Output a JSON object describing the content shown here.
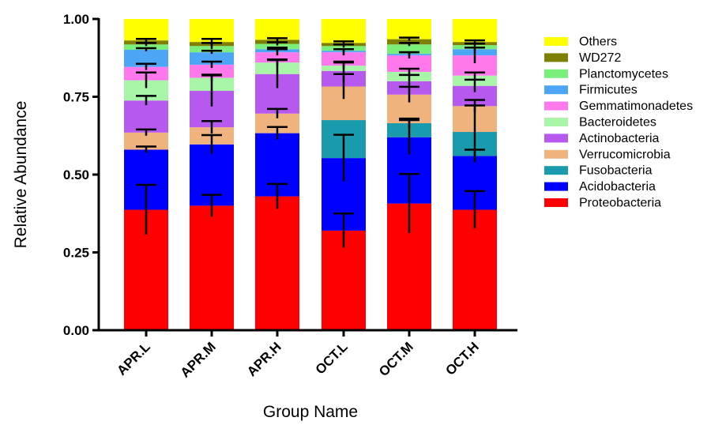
{
  "chart_data": {
    "type": "bar",
    "stacked": true,
    "xlabel": "Group Name",
    "ylabel": "Relative Abundance",
    "ylim": [
      0,
      1
    ],
    "yticks": [
      "0.00",
      "0.25",
      "0.50",
      "0.75",
      "1.00"
    ],
    "ytick_values": [
      0,
      0.25,
      0.5,
      0.75,
      1.0
    ],
    "categories": [
      "APR.L",
      "APR.M",
      "APR.H",
      "OCT.L",
      "OCT.M",
      "OCT.H"
    ],
    "legend_position": "right",
    "series": [
      {
        "name": "Proteobacteria",
        "color": "#ff0000",
        "values": [
          0.387,
          0.4,
          0.43,
          0.32,
          0.407,
          0.387
        ],
        "error": [
          0.08,
          0.035,
          0.04,
          0.055,
          0.095,
          0.06
        ]
      },
      {
        "name": "Acidobacteria",
        "color": "#0000ff",
        "values": [
          0.193,
          0.197,
          0.203,
          0.233,
          0.213,
          0.173
        ],
        "error": [
          0.01,
          0.03,
          0.02,
          0.075,
          0.055,
          0.02
        ]
      },
      {
        "name": "Fusobacteria",
        "color": "#1a9aad",
        "values": [
          0.0,
          0.0,
          0.0,
          0.122,
          0.045,
          0.077
        ],
        "error": [
          0.0,
          0.0,
          0.0,
          0.0,
          0.015,
          0.085
        ]
      },
      {
        "name": "Verrucomicrobia",
        "color": "#f0b37e",
        "values": [
          0.055,
          0.055,
          0.063,
          0.108,
          0.092,
          0.083
        ],
        "error": [
          0.01,
          0.02,
          0.015,
          0.04,
          0.025,
          0.02
        ]
      },
      {
        "name": "Actinobacteria",
        "color": "#b759ee",
        "values": [
          0.103,
          0.117,
          0.127,
          0.05,
          0.043,
          0.065
        ],
        "error": [
          0.015,
          0.05,
          0.045,
          0.03,
          0.02,
          0.02
        ]
      },
      {
        "name": "Bacteroidetes",
        "color": "#a8f5a8",
        "values": [
          0.065,
          0.042,
          0.037,
          0.017,
          0.03,
          0.033
        ],
        "error": [
          0.025,
          0.01,
          0.01,
          0.01,
          0.01,
          0.01
        ]
      },
      {
        "name": "Gemmatimonadetes",
        "color": "#ff78ec",
        "values": [
          0.043,
          0.042,
          0.033,
          0.043,
          0.053,
          0.065
        ],
        "error": [
          0.01,
          0.01,
          0.01,
          0.01,
          0.01,
          0.025
        ]
      },
      {
        "name": "Firmicutes",
        "color": "#4da6f5",
        "values": [
          0.055,
          0.04,
          0.01,
          0.005,
          0.005,
          0.02
        ],
        "error": [
          0.005,
          0.005,
          0.005,
          0.005,
          0.005,
          0.005
        ]
      },
      {
        "name": "Planctomycetes",
        "color": "#7af07a",
        "values": [
          0.017,
          0.02,
          0.017,
          0.015,
          0.03,
          0.013
        ],
        "error": [
          0.005,
          0.01,
          0.005,
          0.005,
          0.005,
          0.005
        ]
      },
      {
        "name": "WD272",
        "color": "#7f7f00",
        "values": [
          0.013,
          0.013,
          0.013,
          0.01,
          0.017,
          0.01
        ],
        "error": [
          0.005,
          0.01,
          0.005,
          0.005,
          0.005,
          0.005
        ]
      },
      {
        "name": "Others",
        "color": "#ffff00",
        "values": [
          0.069,
          0.074,
          0.067,
          0.077,
          0.065,
          0.074
        ],
        "error": [
          0,
          0,
          0,
          0,
          0,
          0
        ]
      }
    ]
  }
}
